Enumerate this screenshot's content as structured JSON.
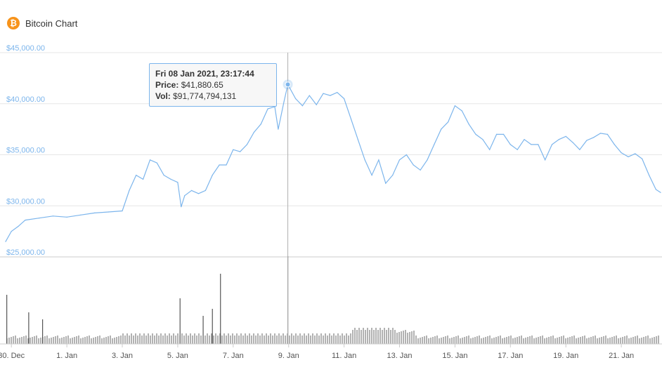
{
  "header": {
    "title": "Bitcoin Chart",
    "logo_glyph": "₿",
    "logo_color": "#f7931a"
  },
  "tooltip": {
    "date": "Fri 08 Jan 2021, 23:17:44",
    "price_label": "Price:",
    "price_value": "$41,880.65",
    "vol_label": "Vol:",
    "vol_value": "$91,774,794,131"
  },
  "chart_data": {
    "type": "line",
    "title": "Bitcoin Chart",
    "xlabel": "",
    "ylabel": "",
    "grid": true,
    "line_color": "#7cb5ec",
    "volume_color": "#555555",
    "ylim": [
      25000,
      45000
    ],
    "y_ticks": [
      25000,
      30000,
      35000,
      40000,
      45000
    ],
    "y_tick_labels": [
      "$25,000.00",
      "$30,000.00",
      "$35,000.00",
      "$40,000.00",
      "$45,000.00"
    ],
    "x_ticks": [
      "2020-12-30",
      "2021-01-01",
      "2021-01-03",
      "2021-01-05",
      "2021-01-07",
      "2021-01-09",
      "2021-01-11",
      "2021-01-13",
      "2021-01-15",
      "2021-01-17",
      "2021-01-19",
      "2021-01-21"
    ],
    "x_tick_labels": [
      "30. Dec",
      "1. Jan",
      "3. Jan",
      "5. Jan",
      "7. Jan",
      "9. Jan",
      "11. Jan",
      "13. Jan",
      "15. Jan",
      "17. Jan",
      "19. Jan",
      "21. Jan"
    ],
    "x_range": [
      "2020-12-29T19:00",
      "2021-01-22T10:00"
    ],
    "highlight_point": {
      "x": "2021-01-08T23:17:44",
      "y": 41880.65
    },
    "series": [
      {
        "values": [
          [
            "2020-12-29T19:00",
            26500
          ],
          [
            "2020-12-30T00:00",
            27500
          ],
          [
            "2020-12-30T06:00",
            28000
          ],
          [
            "2020-12-30T12:00",
            28600
          ],
          [
            "2020-12-31T00:00",
            28800
          ],
          [
            "2020-12-31T12:00",
            29000
          ],
          [
            "2021-01-01T00:00",
            28900
          ],
          [
            "2021-01-01T12:00",
            29100
          ],
          [
            "2021-01-02T00:00",
            29300
          ],
          [
            "2021-01-02T12:00",
            29400
          ],
          [
            "2021-01-03T00:00",
            29500
          ],
          [
            "2021-01-03T06:00",
            31500
          ],
          [
            "2021-01-03T12:00",
            33000
          ],
          [
            "2021-01-03T18:00",
            32600
          ],
          [
            "2021-01-04T00:00",
            34500
          ],
          [
            "2021-01-04T06:00",
            34200
          ],
          [
            "2021-01-04T12:00",
            33000
          ],
          [
            "2021-01-04T18:00",
            32600
          ],
          [
            "2021-01-05T00:00",
            32300
          ],
          [
            "2021-01-05T03:00",
            29900
          ],
          [
            "2021-01-05T06:00",
            31000
          ],
          [
            "2021-01-05T12:00",
            31500
          ],
          [
            "2021-01-05T18:00",
            31200
          ],
          [
            "2021-01-06T00:00",
            31500
          ],
          [
            "2021-01-06T06:00",
            33000
          ],
          [
            "2021-01-06T12:00",
            34000
          ],
          [
            "2021-01-06T18:00",
            34000
          ],
          [
            "2021-01-07T00:00",
            35500
          ],
          [
            "2021-01-07T06:00",
            35300
          ],
          [
            "2021-01-07T12:00",
            36000
          ],
          [
            "2021-01-07T18:00",
            37200
          ],
          [
            "2021-01-08T00:00",
            38000
          ],
          [
            "2021-01-08T06:00",
            39500
          ],
          [
            "2021-01-08T12:00",
            39700
          ],
          [
            "2021-01-08T15:00",
            37500
          ],
          [
            "2021-01-08T20:00",
            40200
          ],
          [
            "2021-01-08T23:17:44",
            41880.65
          ],
          [
            "2021-01-09T06:00",
            40500
          ],
          [
            "2021-01-09T12:00",
            39800
          ],
          [
            "2021-01-09T18:00",
            40800
          ],
          [
            "2021-01-10T00:00",
            39900
          ],
          [
            "2021-01-10T06:00",
            41000
          ],
          [
            "2021-01-10T12:00",
            40800
          ],
          [
            "2021-01-10T18:00",
            41100
          ],
          [
            "2021-01-11T00:00",
            40500
          ],
          [
            "2021-01-11T06:00",
            38500
          ],
          [
            "2021-01-11T12:00",
            36500
          ],
          [
            "2021-01-11T18:00",
            34500
          ],
          [
            "2021-01-12T00:00",
            33000
          ],
          [
            "2021-01-12T06:00",
            34500
          ],
          [
            "2021-01-12T12:00",
            32200
          ],
          [
            "2021-01-12T18:00",
            33000
          ],
          [
            "2021-01-13T00:00",
            34500
          ],
          [
            "2021-01-13T06:00",
            35000
          ],
          [
            "2021-01-13T12:00",
            34000
          ],
          [
            "2021-01-13T18:00",
            33500
          ],
          [
            "2021-01-14T00:00",
            34500
          ],
          [
            "2021-01-14T06:00",
            36000
          ],
          [
            "2021-01-14T12:00",
            37500
          ],
          [
            "2021-01-14T18:00",
            38200
          ],
          [
            "2021-01-15T00:00",
            39800
          ],
          [
            "2021-01-15T06:00",
            39300
          ],
          [
            "2021-01-15T12:00",
            38000
          ],
          [
            "2021-01-15T18:00",
            37000
          ],
          [
            "2021-01-16T00:00",
            36500
          ],
          [
            "2021-01-16T06:00",
            35500
          ],
          [
            "2021-01-16T12:00",
            37000
          ],
          [
            "2021-01-16T18:00",
            37000
          ],
          [
            "2021-01-17T00:00",
            36000
          ],
          [
            "2021-01-17T06:00",
            35500
          ],
          [
            "2021-01-17T12:00",
            36500
          ],
          [
            "2021-01-17T18:00",
            36000
          ],
          [
            "2021-01-18T00:00",
            36000
          ],
          [
            "2021-01-18T06:00",
            34500
          ],
          [
            "2021-01-18T12:00",
            36000
          ],
          [
            "2021-01-18T18:00",
            36500
          ],
          [
            "2021-01-19T00:00",
            36800
          ],
          [
            "2021-01-19T06:00",
            36200
          ],
          [
            "2021-01-19T12:00",
            35500
          ],
          [
            "2021-01-19T18:00",
            36400
          ],
          [
            "2021-01-20T00:00",
            36700
          ],
          [
            "2021-01-20T06:00",
            37100
          ],
          [
            "2021-01-20T12:00",
            37000
          ],
          [
            "2021-01-20T18:00",
            36000
          ],
          [
            "2021-01-21T00:00",
            35200
          ],
          [
            "2021-01-21T06:00",
            34800
          ],
          [
            "2021-01-21T12:00",
            35100
          ],
          [
            "2021-01-21T18:00",
            34600
          ],
          [
            "2021-01-22T00:00",
            33000
          ],
          [
            "2021-01-22T06:00",
            31600
          ],
          [
            "2021-01-22T10:00",
            31300
          ]
        ]
      }
    ],
    "volume_spikes": [
      [
        "2020-12-29T20:00",
        70
      ],
      [
        "2020-12-30T15:00",
        45
      ],
      [
        "2020-12-31T03:00",
        35
      ],
      [
        "2021-01-05T02:00",
        65
      ],
      [
        "2021-01-05T22:00",
        40
      ],
      [
        "2021-01-06T06:00",
        50
      ],
      [
        "2021-01-06T13:00",
        100
      ],
      [
        "2021-01-08T23:17:44",
        125
      ]
    ]
  }
}
